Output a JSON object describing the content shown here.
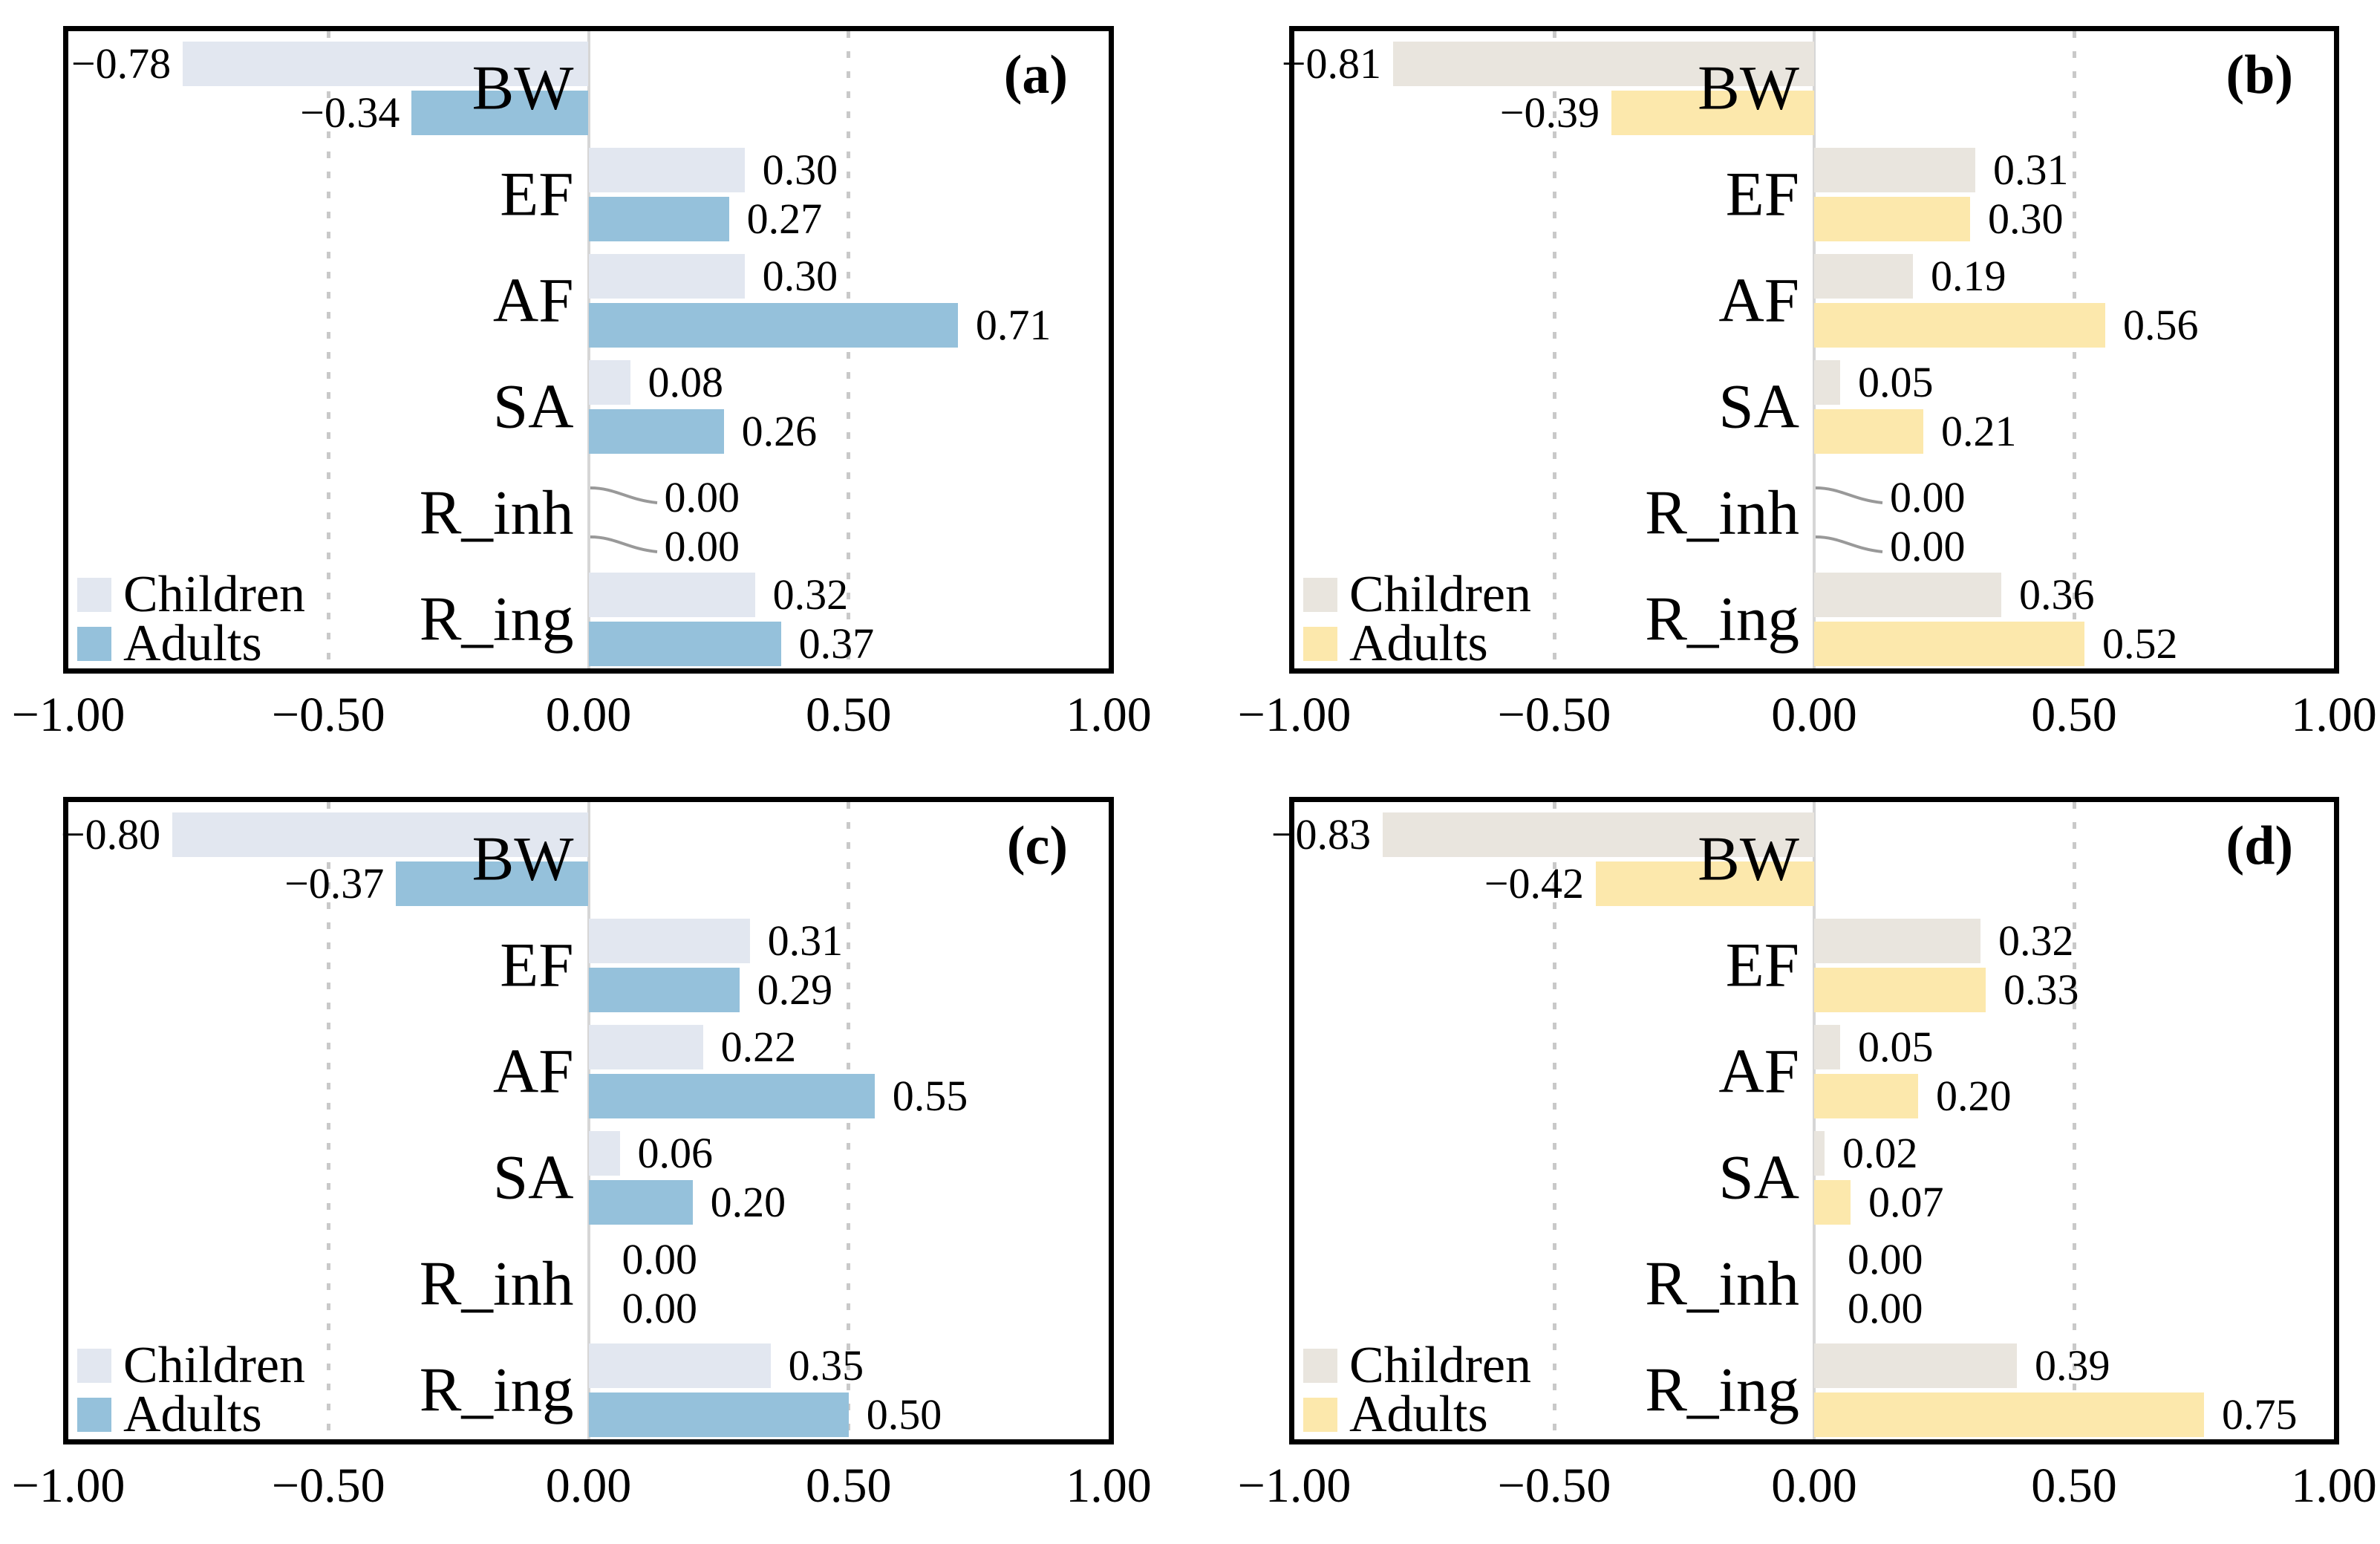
{
  "page": {
    "background": "#ffffff"
  },
  "categories": [
    "BW",
    "EF",
    "AF",
    "SA",
    "R_inh",
    "R_ing"
  ],
  "legend": {
    "items": [
      "Children",
      "Adults"
    ]
  },
  "axis": {
    "ticks": [
      -1,
      -0.5,
      0,
      0.5,
      1
    ],
    "tick_labels": [
      "−1.00",
      "−0.50",
      "0.00",
      "0.50",
      "1.00"
    ]
  },
  "styles": {
    "border_color": "#000000",
    "text_color": "#000000",
    "zero_line_color": "#d6d6d6",
    "grid_dot_color": "#c9c9c9",
    "leader_line_color": "#999999",
    "children_blue": "#e2e7f0",
    "adults_blue": "#95c1db",
    "children_beige": "#e9e5de",
    "adults_yellow": "#fce8ac"
  },
  "chart_data": [
    {
      "type": "bar",
      "panel_label": "(a)",
      "orientation": "horizontal",
      "categories": [
        "BW",
        "EF",
        "AF",
        "SA",
        "R_inh",
        "R_ing"
      ],
      "series": [
        {
          "name": "Children",
          "color": "#e2e7f0",
          "values": [
            -0.78,
            0.3,
            0.3,
            0.08,
            0.0,
            0.32
          ]
        },
        {
          "name": "Adults",
          "color": "#95c1db",
          "values": [
            -0.34,
            0.27,
            0.71,
            0.26,
            0.0,
            0.37
          ]
        }
      ],
      "xlim": [
        -1,
        1
      ],
      "xticks": [
        -1,
        -0.5,
        0,
        0.5,
        1
      ],
      "gridlines_dotted_at": [
        -0.5,
        0.5
      ],
      "zero_leader_lines": true,
      "legend_position": "bottom-left"
    },
    {
      "type": "bar",
      "panel_label": "(b)",
      "orientation": "horizontal",
      "categories": [
        "BW",
        "EF",
        "AF",
        "SA",
        "R_inh",
        "R_ing"
      ],
      "series": [
        {
          "name": "Children",
          "color": "#e9e5de",
          "values": [
            -0.81,
            0.31,
            0.19,
            0.05,
            0.0,
            0.36
          ]
        },
        {
          "name": "Adults",
          "color": "#fce8ac",
          "values": [
            -0.39,
            0.3,
            0.56,
            0.21,
            0.0,
            0.52
          ]
        }
      ],
      "xlim": [
        -1,
        1
      ],
      "xticks": [
        -1,
        -0.5,
        0,
        0.5,
        1
      ],
      "gridlines_dotted_at": [
        -0.5,
        0.5
      ],
      "zero_leader_lines": true,
      "legend_position": "bottom-left"
    },
    {
      "type": "bar",
      "panel_label": "(c)",
      "orientation": "horizontal",
      "categories": [
        "BW",
        "EF",
        "AF",
        "SA",
        "R_inh",
        "R_ing"
      ],
      "series": [
        {
          "name": "Children",
          "color": "#e2e7f0",
          "values": [
            -0.8,
            0.31,
            0.22,
            0.06,
            0.0,
            0.35
          ]
        },
        {
          "name": "Adults",
          "color": "#95c1db",
          "values": [
            -0.37,
            0.29,
            0.55,
            0.2,
            0.0,
            0.5
          ]
        }
      ],
      "xlim": [
        -1,
        1
      ],
      "xticks": [
        -1,
        -0.5,
        0,
        0.5,
        1
      ],
      "gridlines_dotted_at": [
        -0.5,
        0.5
      ],
      "zero_leader_lines": false,
      "legend_position": "bottom-left"
    },
    {
      "type": "bar",
      "panel_label": "(d)",
      "orientation": "horizontal",
      "categories": [
        "BW",
        "EF",
        "AF",
        "SA",
        "R_inh",
        "R_ing"
      ],
      "series": [
        {
          "name": "Children",
          "color": "#e9e5de",
          "values": [
            -0.83,
            0.32,
            0.05,
            0.02,
            0.0,
            0.39
          ]
        },
        {
          "name": "Adults",
          "color": "#fce8ac",
          "values": [
            -0.42,
            0.33,
            0.2,
            0.07,
            0.0,
            0.75
          ]
        }
      ],
      "xlim": [
        -1,
        1
      ],
      "xticks": [
        -1,
        -0.5,
        0,
        0.5,
        1
      ],
      "gridlines_dotted_at": [
        -0.5,
        0.5
      ],
      "zero_leader_lines": false,
      "legend_position": "bottom-left"
    }
  ]
}
